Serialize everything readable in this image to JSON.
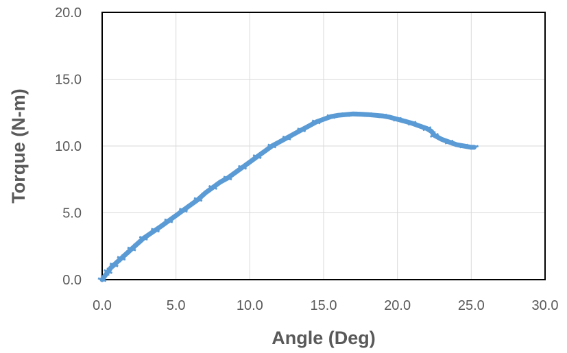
{
  "chart_data": {
    "type": "scatter",
    "title": "",
    "xlabel": "Angle (Deg)",
    "ylabel": "Torque (N-m)",
    "xlim": [
      0,
      30
    ],
    "ylim": [
      0,
      20
    ],
    "xticks": [
      "0.0",
      "5.0",
      "10.0",
      "15.0",
      "20.0",
      "25.0",
      "30.0"
    ],
    "yticks": [
      "0.0",
      "5.0",
      "10.0",
      "15.0",
      "20.0"
    ],
    "grid": true,
    "legend": "none",
    "series_color": "#5b9bd5",
    "series": [
      {
        "x": [
          0.0,
          0.2,
          0.4,
          0.6,
          0.8,
          1.0,
          1.3,
          1.6,
          2.0,
          2.4,
          2.8,
          3.2,
          3.6,
          4.0,
          4.5,
          5.0,
          5.5,
          6.0,
          6.5,
          7.0,
          7.5,
          8.0,
          8.5,
          9.0,
          9.5,
          10.0,
          10.5,
          11.0,
          11.5,
          12.0,
          12.5,
          13.0,
          13.5,
          14.0,
          14.5,
          15.0,
          15.5,
          16.0,
          16.5,
          17.0,
          17.5,
          18.0,
          18.5,
          19.0,
          19.5,
          20.0,
          20.5,
          21.0,
          21.5,
          22.0,
          22.3,
          22.5,
          23.0,
          23.5,
          24.0,
          24.5,
          25.0,
          25.2
        ],
        "y": [
          0.0,
          0.3,
          0.6,
          0.9,
          1.1,
          1.3,
          1.6,
          1.9,
          2.3,
          2.7,
          3.1,
          3.4,
          3.7,
          4.0,
          4.4,
          4.8,
          5.2,
          5.6,
          6.0,
          6.5,
          6.9,
          7.3,
          7.6,
          8.0,
          8.4,
          8.8,
          9.2,
          9.6,
          10.0,
          10.3,
          10.6,
          10.9,
          11.2,
          11.5,
          11.8,
          12.0,
          12.2,
          12.3,
          12.35,
          12.4,
          12.38,
          12.35,
          12.3,
          12.25,
          12.15,
          12.0,
          11.85,
          11.7,
          11.5,
          11.3,
          11.1,
          10.8,
          10.5,
          10.3,
          10.1,
          10.0,
          9.9,
          9.9
        ]
      }
    ]
  }
}
